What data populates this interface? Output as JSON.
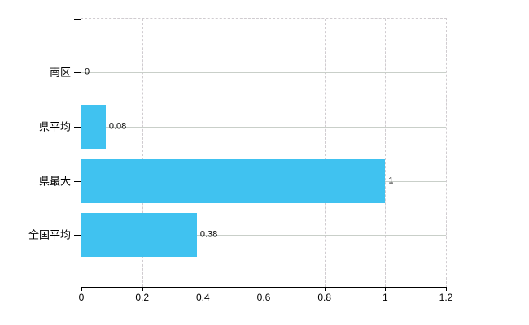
{
  "chart_data": {
    "type": "bar",
    "orientation": "horizontal",
    "title": "",
    "xlabel": "",
    "ylabel": "",
    "categories": [
      "南区",
      "県平均",
      "県最大",
      "全国平均"
    ],
    "values": [
      0,
      0.08,
      1,
      0.38
    ],
    "value_labels": [
      "0",
      "0.08",
      "1",
      "0.38"
    ],
    "x_tick_values": [
      0,
      0.2,
      0.4,
      0.6,
      0.8,
      1,
      1.2
    ],
    "x_tick_labels": [
      "0",
      "0.2",
      "0.4",
      "0.6",
      "0.8",
      "1",
      "1.2"
    ],
    "xlim": [
      0,
      1.2
    ],
    "grid": "on",
    "legend": "none",
    "colors": {
      "bar": "#40C2F0",
      "axis": "#000000",
      "h_gridline": "#c9cfc9",
      "v_gridline_dashed": "#d0ccd0",
      "text": "#000000",
      "background": "#ffffff"
    }
  }
}
